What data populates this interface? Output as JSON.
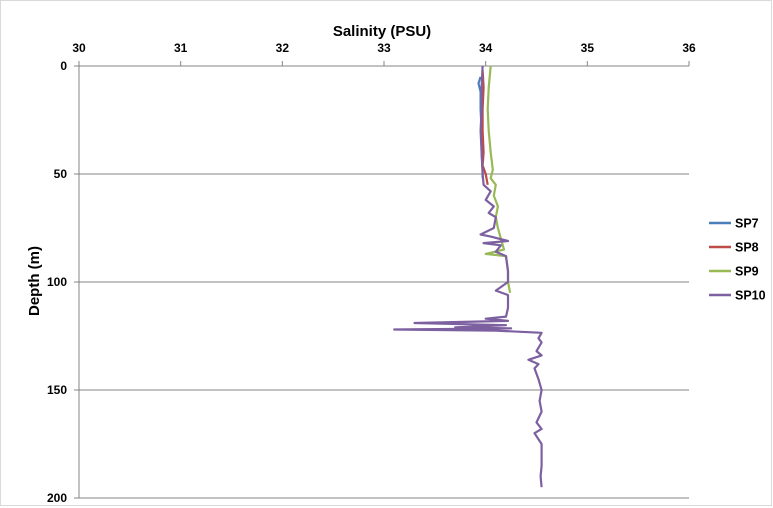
{
  "chart_data": {
    "type": "line",
    "title": "",
    "xlabel": "Salinity (PSU)",
    "ylabel": "Depth (m)",
    "x_axis_position": "top",
    "y_axis_inverted": true,
    "xlim": [
      30,
      36
    ],
    "ylim": [
      0,
      200
    ],
    "x_ticks": [
      "30",
      "31",
      "32",
      "33",
      "34",
      "35",
      "36"
    ],
    "y_ticks": [
      "0",
      "50",
      "100",
      "150",
      "200"
    ],
    "grid": "horizontal",
    "legend_position": "right",
    "series": [
      {
        "name": "SP7",
        "color": "#4a7ebb",
        "points": [
          [
            33.95,
            5
          ],
          [
            33.93,
            8
          ],
          [
            33.95,
            12
          ],
          [
            33.95,
            20
          ],
          [
            33.96,
            30
          ],
          [
            33.96,
            40
          ],
          [
            33.97,
            48
          ],
          [
            33.97,
            52
          ]
        ]
      },
      {
        "name": "SP8",
        "color": "#be4b48",
        "points": [
          [
            33.97,
            2
          ],
          [
            33.98,
            10
          ],
          [
            33.97,
            20
          ],
          [
            33.97,
            30
          ],
          [
            33.98,
            40
          ],
          [
            33.97,
            46
          ],
          [
            34.0,
            50
          ],
          [
            34.02,
            55
          ]
        ]
      },
      {
        "name": "SP9",
        "color": "#98b954",
        "points": [
          [
            34.05,
            0
          ],
          [
            34.03,
            10
          ],
          [
            34.02,
            20
          ],
          [
            34.03,
            30
          ],
          [
            34.05,
            40
          ],
          [
            34.07,
            48
          ],
          [
            34.05,
            52
          ],
          [
            34.1,
            55
          ],
          [
            34.08,
            60
          ],
          [
            34.12,
            65
          ],
          [
            34.1,
            70
          ],
          [
            34.12,
            75
          ],
          [
            34.15,
            80
          ],
          [
            34.18,
            85
          ],
          [
            34.0,
            87
          ],
          [
            34.2,
            88
          ],
          [
            34.22,
            95
          ],
          [
            34.22,
            100
          ],
          [
            34.24,
            105
          ]
        ]
      },
      {
        "name": "SP10",
        "color": "#7d60a0",
        "points": [
          [
            33.97,
            0
          ],
          [
            33.96,
            10
          ],
          [
            33.96,
            20
          ],
          [
            33.95,
            30
          ],
          [
            33.96,
            40
          ],
          [
            33.97,
            50
          ],
          [
            33.98,
            55
          ],
          [
            34.05,
            58
          ],
          [
            34.0,
            62
          ],
          [
            34.08,
            65
          ],
          [
            34.03,
            68
          ],
          [
            34.1,
            70
          ],
          [
            34.08,
            75
          ],
          [
            33.95,
            78
          ],
          [
            34.05,
            79
          ],
          [
            34.22,
            81
          ],
          [
            33.98,
            82
          ],
          [
            34.15,
            83
          ],
          [
            34.1,
            86
          ],
          [
            34.2,
            88
          ],
          [
            34.22,
            95
          ],
          [
            34.22,
            100
          ],
          [
            34.1,
            104
          ],
          [
            34.22,
            106
          ],
          [
            34.22,
            112
          ],
          [
            34.2,
            116
          ],
          [
            34.0,
            117
          ],
          [
            34.22,
            118
          ],
          [
            33.3,
            119
          ],
          [
            34.2,
            120
          ],
          [
            33.7,
            121
          ],
          [
            34.25,
            121.5
          ],
          [
            33.1,
            122
          ],
          [
            34.1,
            122.5
          ],
          [
            34.55,
            123.5
          ],
          [
            34.52,
            126
          ],
          [
            34.55,
            128
          ],
          [
            34.5,
            132
          ],
          [
            34.55,
            134
          ],
          [
            34.42,
            136
          ],
          [
            34.52,
            138
          ],
          [
            34.48,
            140
          ],
          [
            34.52,
            145
          ],
          [
            34.55,
            150
          ],
          [
            34.53,
            155
          ],
          [
            34.55,
            160
          ],
          [
            34.5,
            165
          ],
          [
            34.55,
            168
          ],
          [
            34.48,
            170
          ],
          [
            34.55,
            175
          ],
          [
            34.55,
            180
          ],
          [
            34.55,
            185
          ],
          [
            34.54,
            190
          ],
          [
            34.55,
            195
          ]
        ]
      }
    ]
  }
}
